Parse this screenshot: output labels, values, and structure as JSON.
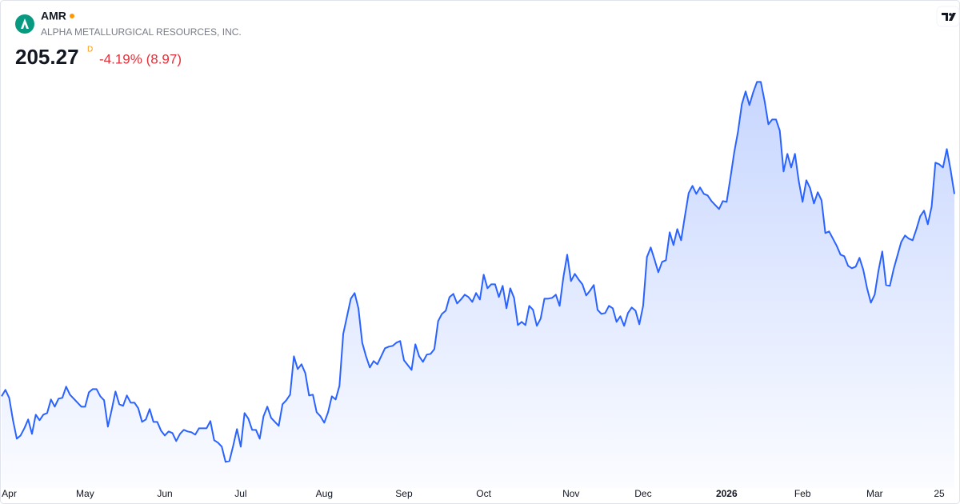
{
  "header": {
    "symbol": "AMR",
    "name": "ALPHA METALLURGICAL RESOURCES, INC.",
    "price": "205.27",
    "price_flag": "D",
    "change": "-4.19% (8.97)"
  },
  "chart_data": {
    "type": "area",
    "color": "#2962ff",
    "change_color": "#e0313b",
    "ylim": [
      95,
      260
    ],
    "categories": [
      null,
      null,
      "Apr",
      null,
      null,
      null,
      null,
      null,
      null,
      null,
      null,
      null,
      null,
      null,
      null,
      null,
      null,
      null,
      null,
      null,
      null,
      null,
      "May",
      null,
      null,
      null,
      null,
      null,
      null,
      null,
      null,
      null,
      null,
      null,
      null,
      null,
      null,
      null,
      null,
      null,
      null,
      null,
      null,
      "Jun",
      null,
      null,
      null,
      null,
      null,
      null,
      null,
      null,
      null,
      null,
      null,
      null,
      null,
      null,
      null,
      null,
      null,
      null,
      null,
      "Jul",
      null,
      null,
      null,
      null,
      null,
      null,
      null,
      null,
      null,
      null,
      null,
      null,
      null,
      null,
      null,
      null,
      null,
      null,
      null,
      null,
      null,
      "Aug",
      null,
      null,
      null,
      null,
      null,
      null,
      null,
      null,
      null,
      null,
      null,
      null,
      null,
      null,
      null,
      null,
      null,
      null,
      null,
      null,
      "Sep",
      null,
      null,
      null,
      null,
      null,
      null,
      null,
      null,
      null,
      null,
      null,
      null,
      null,
      null,
      null,
      null,
      null,
      null,
      null,
      null,
      "Oct",
      null,
      null,
      null,
      null,
      null,
      null,
      null,
      null,
      null,
      null,
      null,
      null,
      null,
      null,
      null,
      null,
      null,
      null,
      null,
      null,
      null,
      null,
      "Nov",
      null,
      null,
      null,
      null,
      null,
      null,
      null,
      null,
      null,
      null,
      null,
      null,
      null,
      null,
      null,
      null,
      null,
      null,
      "Dec",
      null,
      null,
      null,
      null,
      null,
      null,
      null,
      null,
      null,
      null,
      null,
      null,
      null,
      null,
      null,
      null,
      null,
      null,
      null,
      null,
      null,
      "2026",
      null,
      null,
      null,
      null,
      null,
      null,
      null,
      null,
      null,
      null,
      null,
      null,
      null,
      null,
      null,
      null,
      null,
      null,
      null,
      "Feb",
      null,
      null,
      null,
      null,
      null,
      null,
      null,
      null,
      null,
      null,
      null,
      null,
      null,
      null,
      null,
      null,
      null,
      null,
      "Mar",
      null,
      null,
      null,
      null,
      null,
      null,
      null,
      null,
      null,
      null,
      null,
      null,
      null,
      null,
      null,
      null,
      "25",
      null,
      null,
      null,
      null
    ],
    "values": [
      129.4,
      131.8,
      128.8,
      120.4,
      113.5,
      114.7,
      117.4,
      120.7,
      115.3,
      122.5,
      120.4,
      122.5,
      123.1,
      128.2,
      125.5,
      128.5,
      128.8,
      133.0,
      130.0,
      128.5,
      127.0,
      125.5,
      125.5,
      130.9,
      132.1,
      132.1,
      129.4,
      127.9,
      118.0,
      124.3,
      131.2,
      126.4,
      125.8,
      129.7,
      127.0,
      127.0,
      124.9,
      119.8,
      120.7,
      124.6,
      119.8,
      119.8,
      116.5,
      114.7,
      116.2,
      115.6,
      112.6,
      115.3,
      116.8,
      116.2,
      115.9,
      115.0,
      117.4,
      117.4,
      117.4,
      120.1,
      112.9,
      112.0,
      110.5,
      104.8,
      105.1,
      110.8,
      117.1,
      110.5,
      123.1,
      121.0,
      116.8,
      116.8,
      113.5,
      121.9,
      125.5,
      121.3,
      119.8,
      118.3,
      126.4,
      127.9,
      130.0,
      144.4,
      139.6,
      141.4,
      138.1,
      129.7,
      130.0,
      123.4,
      121.9,
      119.5,
      123.4,
      129.4,
      128.2,
      133.3,
      152.8,
      159.4,
      166.0,
      168.1,
      162.4,
      149.5,
      144.4,
      140.2,
      142.6,
      141.4,
      144.4,
      147.4,
      148.0,
      148.3,
      149.5,
      150.1,
      142.9,
      141.1,
      139.3,
      148.9,
      144.4,
      142.3,
      145.0,
      145.3,
      147.1,
      157.6,
      160.3,
      161.5,
      166.6,
      167.8,
      164.2,
      165.7,
      167.5,
      166.6,
      164.8,
      168.1,
      165.7,
      175.0,
      169.9,
      171.4,
      171.4,
      166.6,
      170.8,
      162.4,
      169.9,
      166.3,
      156.1,
      157.3,
      156.1,
      163.3,
      161.8,
      155.8,
      158.5,
      166.0,
      166.0,
      166.3,
      167.5,
      163.3,
      174.1,
      182.5,
      172.6,
      175.3,
      173.2,
      171.4,
      167.2,
      169.0,
      171.1,
      161.8,
      160.3,
      160.6,
      163.3,
      162.4,
      157.3,
      159.4,
      155.8,
      160.6,
      162.7,
      161.5,
      156.4,
      163.3,
      181.6,
      185.2,
      180.7,
      175.9,
      179.8,
      180.4,
      190.9,
      186.1,
      192.1,
      187.9,
      196.9,
      205.6,
      208.3,
      205.3,
      207.7,
      205.3,
      204.7,
      202.6,
      201.1,
      199.6,
      202.6,
      202.3,
      211.3,
      220.9,
      228.7,
      238.9,
      243.7,
      238.6,
      243.4,
      247.3,
      247.3,
      240.1,
      231.4,
      233.2,
      233.2,
      229.0,
      213.7,
      220.3,
      215.2,
      220.3,
      210.1,
      202.3,
      210.4,
      207.4,
      201.7,
      205.9,
      202.9,
      190.6,
      191.2,
      188.5,
      185.8,
      182.5,
      181.9,
      178.3,
      177.4,
      178.0,
      181.3,
      176.8,
      169.9,
      164.5,
      167.5,
      176.5,
      183.7,
      171.1,
      170.8,
      177.1,
      182.2,
      187.3,
      189.7,
      188.5,
      187.9,
      192.1,
      196.9,
      199.0,
      193.9,
      200.5,
      217.0,
      216.4,
      215.2,
      222.1,
      214.3,
      205.27
    ]
  }
}
